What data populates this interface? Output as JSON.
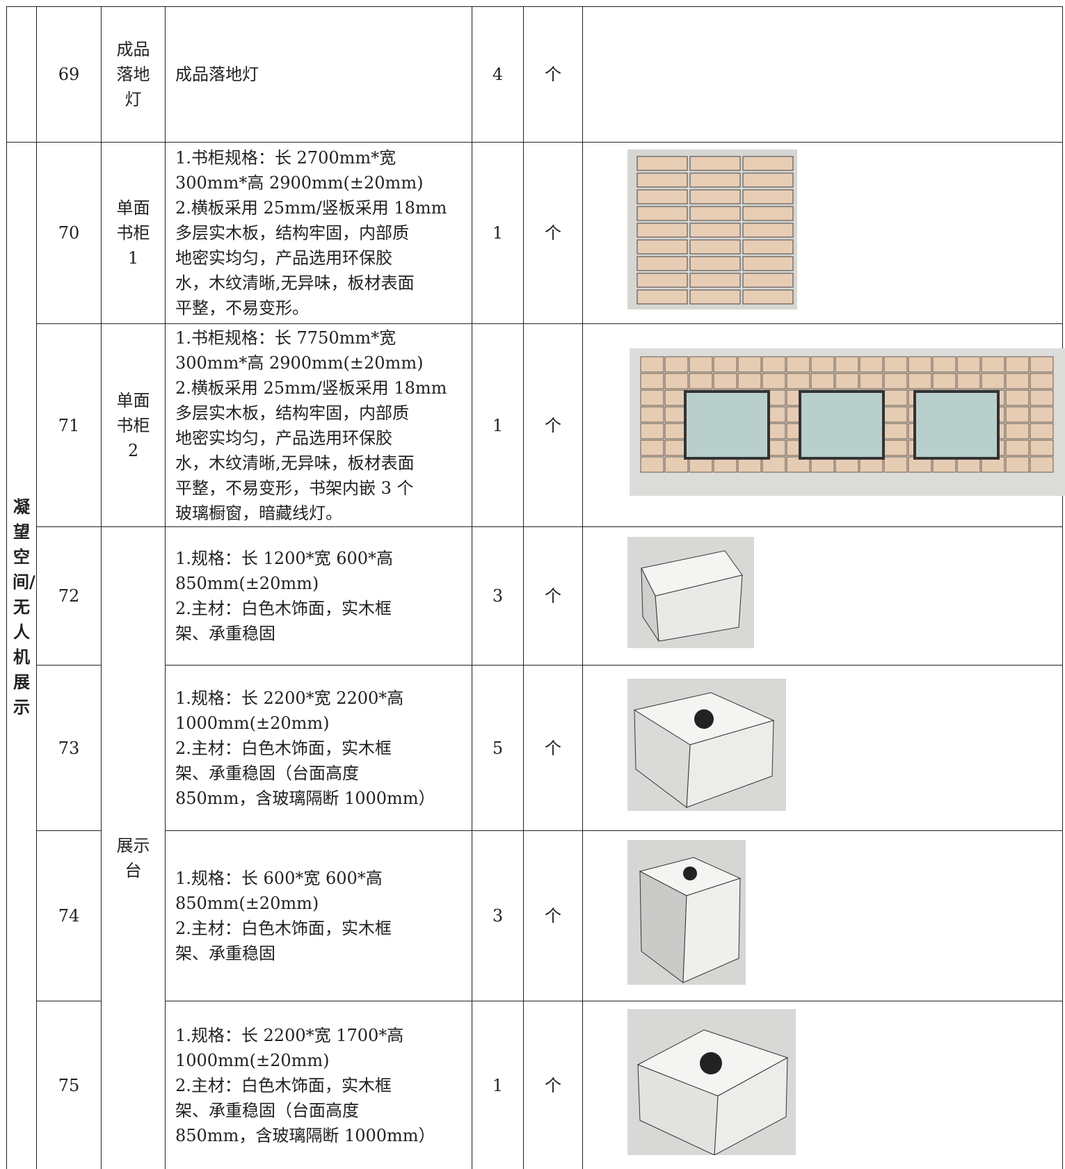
{
  "table": {
    "section": "凝望空间/无人机展示",
    "merged_name": "展示台",
    "rows": [
      {
        "no": 69,
        "name": "成品落地灯",
        "desc": [
          "成品落地灯"
        ],
        "qty": 4,
        "unit": "个"
      },
      {
        "no": 70,
        "name": "单面书柜1",
        "desc": [
          "1.书柜规格：长 2700mm*宽",
          "300mm*高 2900mm(±20mm)",
          "2.横板采用 25mm/竖板采用 18mm",
          "多层实木板，结构牢固，内部质",
          "地密实均匀，产品选用环保胶",
          "水，木纹清晰,无异味，板材表面",
          "平整，不易变形。"
        ],
        "qty": 1,
        "unit": "个"
      },
      {
        "no": 71,
        "name": "单面书柜2",
        "desc": [
          "1.书柜规格：长 7750mm*宽",
          "300mm*高 2900mm(±20mm)",
          "2.横板采用 25mm/竖板采用 18mm",
          "多层实木板，结构牢固，内部质",
          "地密实均匀，产品选用环保胶",
          "水，木纹清晰,无异味，板材表面",
          "平整，不易变形，书架内嵌 3 个",
          "玻璃橱窗，暗藏线灯。"
        ],
        "qty": 1,
        "unit": "个"
      },
      {
        "no": 72,
        "desc": [
          "1.规格：长 1200*宽 600*高",
          "850mm(±20mm)",
          "2.主材：白色木饰面，实木框",
          "架、承重稳固"
        ],
        "qty": 3,
        "unit": "个"
      },
      {
        "no": 73,
        "desc": [
          "1.规格：长 2200*宽 2200*高",
          "1000mm(±20mm)",
          "2.主材：白色木饰面，实木框",
          "架、承重稳固（台面高度",
          "850mm，含玻璃隔断 1000mm）"
        ],
        "qty": 5,
        "unit": "个"
      },
      {
        "no": 74,
        "desc": [
          "1.规格：长 600*宽 600*高",
          "850mm(±20mm)",
          "2.主材：白色木饰面，实木框",
          "架、承重稳固"
        ],
        "qty": 3,
        "unit": "个"
      },
      {
        "no": 75,
        "desc": [
          "1.规格：长 2200*宽 1700*高",
          "1000mm(±20mm)",
          "2.主材：白色木饰面，实木框",
          "架、承重稳固（台面高度",
          "850mm，含玻璃隔断 1000mm）"
        ],
        "qty": 1,
        "unit": "个"
      }
    ]
  }
}
